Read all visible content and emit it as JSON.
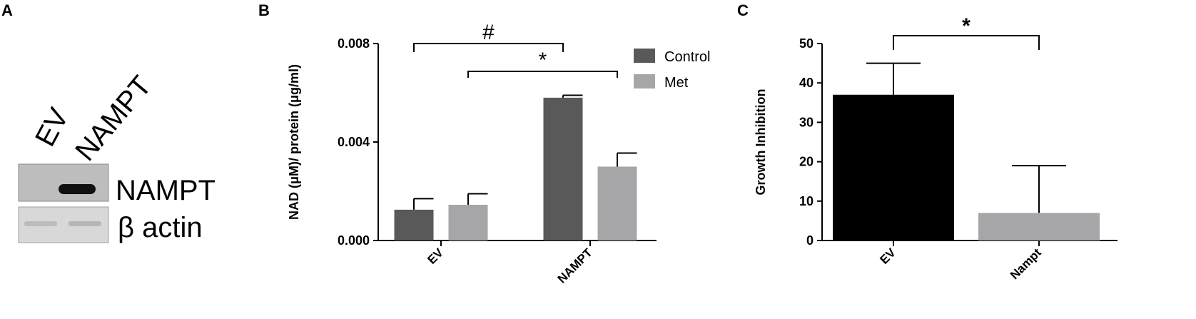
{
  "panels": {
    "a": "A",
    "b": "B",
    "c": "C"
  },
  "blot": {
    "lanes": [
      "EV",
      "NAMPT"
    ],
    "rows": [
      "NAMPT",
      "β actin"
    ]
  },
  "chart_data": [
    {
      "panel": "B",
      "type": "bar",
      "categories": [
        "EV",
        "NAMPT"
      ],
      "series": [
        {
          "name": "Control",
          "values": [
            0.00125,
            0.0058
          ],
          "errors": [
            0.00045,
            0.0001
          ],
          "color": "#595959"
        },
        {
          "name": "Met",
          "values": [
            0.00145,
            0.003
          ],
          "errors": [
            0.00045,
            0.00055
          ],
          "color": "#a6a6a8"
        }
      ],
      "title": "",
      "xlabel": "",
      "ylabel": "NAD (μM)/ protein (μg/ml)",
      "ylim": [
        0,
        0.008
      ],
      "yticks": [
        "0.000",
        "0.004",
        "0.008"
      ],
      "legend_position": "top-right",
      "grid": false,
      "annotations": [
        {
          "symbol": "#",
          "from": "EV/Control",
          "to": "NAMPT/Control"
        },
        {
          "symbol": "*",
          "from": "EV/Met",
          "to": "NAMPT/Met"
        }
      ]
    },
    {
      "panel": "C",
      "type": "bar",
      "categories": [
        "EV",
        "Nampt"
      ],
      "values": [
        37,
        7
      ],
      "errors": [
        8,
        12
      ],
      "colors": [
        "#000000",
        "#a6a6a8"
      ],
      "title": "",
      "xlabel": "",
      "ylabel": "Growth Inhibition",
      "ylim": [
        0,
        50
      ],
      "yticks": [
        "0",
        "10",
        "20",
        "30",
        "40",
        "50"
      ],
      "grid": false,
      "annotations": [
        {
          "symbol": "*",
          "from": "EV",
          "to": "Nampt"
        }
      ]
    }
  ]
}
